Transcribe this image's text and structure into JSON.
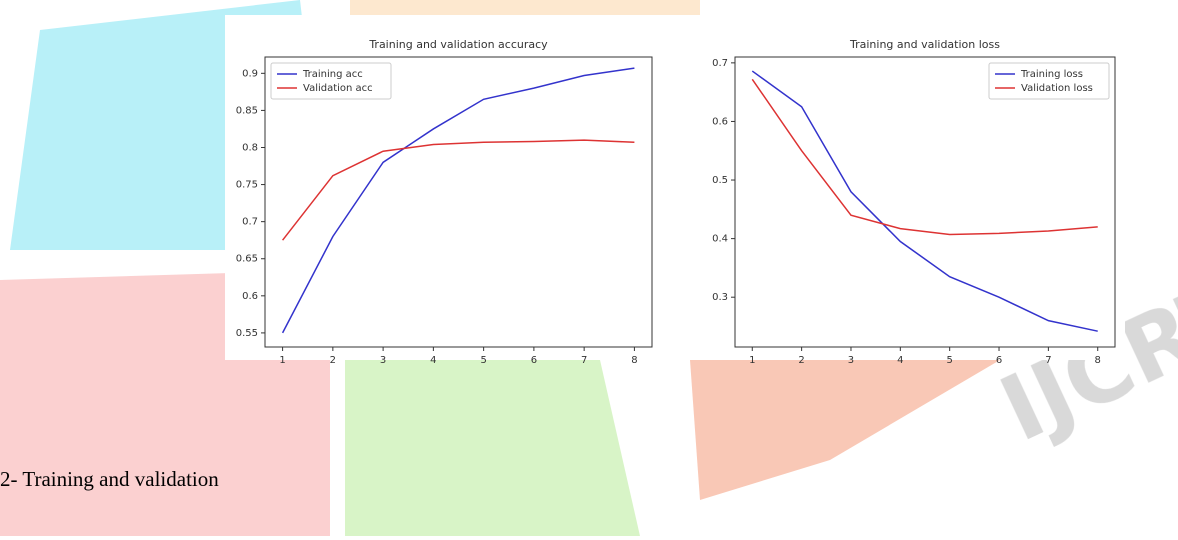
{
  "chart_data": [
    {
      "type": "line",
      "title": "Training and validation accuracy",
      "x": [
        1,
        2,
        3,
        4,
        5,
        6,
        7,
        8
      ],
      "series": [
        {
          "name": "Training acc",
          "color": "#3333cc",
          "values": [
            0.55,
            0.68,
            0.78,
            0.825,
            0.865,
            0.88,
            0.897,
            0.907
          ]
        },
        {
          "name": "Validation acc",
          "color": "#dd3333",
          "values": [
            0.675,
            0.762,
            0.795,
            0.804,
            0.807,
            0.808,
            0.81,
            0.807
          ]
        }
      ],
      "xlim": [
        0.65,
        8.35
      ],
      "xticks": [
        1,
        2,
        3,
        4,
        5,
        6,
        7,
        8
      ],
      "ylim": [
        0.531,
        0.922
      ],
      "yticks": [
        0.55,
        0.6,
        0.65,
        0.7,
        0.75,
        0.8,
        0.85,
        0.9
      ],
      "legend": "upper-left"
    },
    {
      "type": "line",
      "title": "Training and validation loss",
      "x": [
        1,
        2,
        3,
        4,
        5,
        6,
        7,
        8
      ],
      "series": [
        {
          "name": "Training loss",
          "color": "#3333cc",
          "values": [
            0.686,
            0.625,
            0.48,
            0.395,
            0.335,
            0.3,
            0.26,
            0.242
          ]
        },
        {
          "name": "Validation loss",
          "color": "#dd3333",
          "values": [
            0.672,
            0.55,
            0.44,
            0.417,
            0.407,
            0.409,
            0.413,
            0.42
          ]
        }
      ],
      "xlim": [
        0.65,
        8.35
      ],
      "xticks": [
        1,
        2,
        3,
        4,
        5,
        6,
        7,
        8
      ],
      "ylim": [
        0.215,
        0.71
      ],
      "yticks": [
        0.3,
        0.4,
        0.5,
        0.6,
        0.7
      ],
      "legend": "upper-right"
    }
  ],
  "caption": "2- Training and validation"
}
